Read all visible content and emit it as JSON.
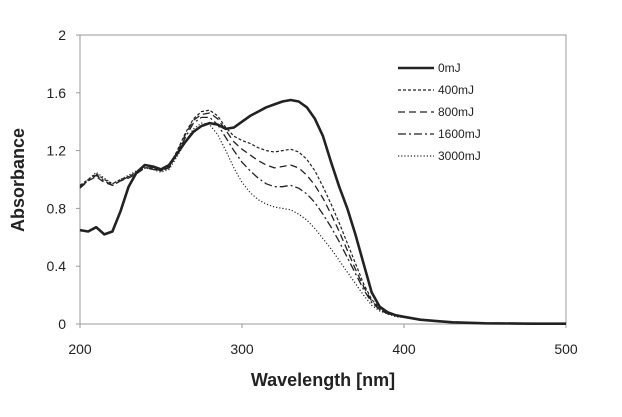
{
  "chart_data": {
    "type": "line",
    "title": "",
    "xlabel": "Wavelength [nm]",
    "ylabel": "Absorbance",
    "xlim": [
      200,
      500
    ],
    "ylim": [
      0,
      2
    ],
    "x_ticks": [
      "200",
      "300",
      "400",
      "500"
    ],
    "y_ticks": [
      "0",
      "0.4",
      "0.8",
      "1.2",
      "1.6",
      "2"
    ],
    "grid": false,
    "legend_position": "top-right",
    "series": [
      {
        "name": "0mJ",
        "style": "solid-bold",
        "x": [
          200,
          205,
          210,
          215,
          220,
          225,
          230,
          235,
          240,
          245,
          250,
          255,
          260,
          265,
          270,
          275,
          280,
          285,
          290,
          295,
          300,
          305,
          310,
          315,
          320,
          325,
          330,
          335,
          340,
          345,
          350,
          355,
          360,
          365,
          370,
          375,
          380,
          385,
          390,
          395,
          400,
          410,
          420,
          430,
          440,
          450,
          460,
          470,
          480,
          490,
          500
        ],
        "y": [
          0.65,
          0.64,
          0.67,
          0.62,
          0.64,
          0.78,
          0.95,
          1.05,
          1.1,
          1.09,
          1.07,
          1.1,
          1.18,
          1.26,
          1.33,
          1.37,
          1.39,
          1.38,
          1.35,
          1.36,
          1.4,
          1.44,
          1.47,
          1.5,
          1.52,
          1.54,
          1.55,
          1.54,
          1.5,
          1.42,
          1.3,
          1.12,
          0.95,
          0.8,
          0.62,
          0.42,
          0.22,
          0.12,
          0.08,
          0.06,
          0.05,
          0.03,
          0.02,
          0.012,
          0.008,
          0.005,
          0.004,
          0.003,
          0.002,
          0.002,
          0.002
        ]
      },
      {
        "name": "400mJ",
        "style": "short-dash",
        "x": [
          200,
          205,
          210,
          215,
          220,
          225,
          230,
          235,
          240,
          245,
          250,
          255,
          260,
          265,
          270,
          275,
          280,
          285,
          290,
          295,
          300,
          305,
          310,
          315,
          320,
          325,
          330,
          335,
          340,
          345,
          350,
          355,
          360,
          365,
          370,
          375,
          380,
          385,
          390,
          395,
          400,
          410,
          420,
          430,
          440,
          450,
          460,
          470,
          480,
          490,
          500
        ],
        "y": [
          0.96,
          1.0,
          1.04,
          1.0,
          0.97,
          1.0,
          1.02,
          1.05,
          1.08,
          1.08,
          1.06,
          1.09,
          1.2,
          1.32,
          1.42,
          1.47,
          1.48,
          1.44,
          1.36,
          1.3,
          1.27,
          1.25,
          1.22,
          1.2,
          1.19,
          1.2,
          1.21,
          1.19,
          1.14,
          1.06,
          0.95,
          0.83,
          0.7,
          0.56,
          0.42,
          0.28,
          0.17,
          0.11,
          0.08,
          0.06,
          0.05,
          0.03,
          0.02,
          0.012,
          0.008,
          0.005,
          0.004,
          0.003,
          0.002,
          0.002,
          0.002
        ]
      },
      {
        "name": "800mJ",
        "style": "dash",
        "x": [
          200,
          205,
          210,
          215,
          220,
          225,
          230,
          235,
          240,
          245,
          250,
          255,
          260,
          265,
          270,
          275,
          280,
          285,
          290,
          295,
          300,
          305,
          310,
          315,
          320,
          325,
          330,
          335,
          340,
          345,
          350,
          355,
          360,
          365,
          370,
          375,
          380,
          385,
          390,
          395,
          400,
          410,
          420,
          430,
          440,
          450,
          460,
          470,
          480,
          490,
          500
        ],
        "y": [
          0.94,
          0.99,
          1.02,
          0.98,
          0.96,
          0.99,
          1.01,
          1.04,
          1.08,
          1.08,
          1.06,
          1.09,
          1.19,
          1.31,
          1.41,
          1.45,
          1.46,
          1.42,
          1.34,
          1.26,
          1.21,
          1.17,
          1.13,
          1.1,
          1.08,
          1.09,
          1.1,
          1.08,
          1.03,
          0.96,
          0.87,
          0.76,
          0.64,
          0.51,
          0.38,
          0.26,
          0.16,
          0.1,
          0.07,
          0.06,
          0.05,
          0.03,
          0.02,
          0.012,
          0.008,
          0.005,
          0.004,
          0.003,
          0.002,
          0.002,
          0.002
        ]
      },
      {
        "name": "1600mJ",
        "style": "dash-dot",
        "x": [
          200,
          205,
          210,
          215,
          220,
          225,
          230,
          235,
          240,
          245,
          250,
          255,
          260,
          265,
          270,
          275,
          280,
          285,
          290,
          295,
          300,
          305,
          310,
          315,
          320,
          325,
          330,
          335,
          340,
          345,
          350,
          355,
          360,
          365,
          370,
          375,
          380,
          385,
          390,
          395,
          400,
          410,
          420,
          430,
          440,
          450,
          460,
          470,
          480,
          490,
          500
        ],
        "y": [
          0.95,
          0.99,
          1.03,
          0.99,
          0.96,
          0.99,
          1.02,
          1.05,
          1.08,
          1.07,
          1.06,
          1.08,
          1.18,
          1.29,
          1.39,
          1.43,
          1.43,
          1.38,
          1.29,
          1.2,
          1.12,
          1.06,
          1.01,
          0.97,
          0.95,
          0.95,
          0.96,
          0.94,
          0.9,
          0.84,
          0.76,
          0.67,
          0.57,
          0.46,
          0.35,
          0.24,
          0.15,
          0.1,
          0.07,
          0.06,
          0.05,
          0.03,
          0.02,
          0.012,
          0.008,
          0.005,
          0.004,
          0.003,
          0.002,
          0.002,
          0.002
        ]
      },
      {
        "name": "3000mJ",
        "style": "dotted",
        "x": [
          200,
          205,
          210,
          215,
          220,
          225,
          230,
          235,
          240,
          245,
          250,
          255,
          260,
          265,
          270,
          275,
          280,
          285,
          290,
          295,
          300,
          305,
          310,
          315,
          320,
          325,
          330,
          335,
          340,
          345,
          350,
          355,
          360,
          365,
          370,
          375,
          380,
          385,
          390,
          395,
          400,
          410,
          420,
          430,
          440,
          450,
          460,
          470,
          480,
          490,
          500
        ],
        "y": [
          0.95,
          1.0,
          1.05,
          1.01,
          0.97,
          1.0,
          1.03,
          1.06,
          1.08,
          1.07,
          1.05,
          1.07,
          1.16,
          1.26,
          1.35,
          1.39,
          1.38,
          1.31,
          1.2,
          1.08,
          0.98,
          0.91,
          0.86,
          0.83,
          0.81,
          0.8,
          0.79,
          0.76,
          0.72,
          0.66,
          0.59,
          0.52,
          0.44,
          0.36,
          0.28,
          0.2,
          0.13,
          0.09,
          0.07,
          0.05,
          0.045,
          0.03,
          0.02,
          0.012,
          0.008,
          0.005,
          0.004,
          0.003,
          0.002,
          0.002,
          0.002
        ]
      }
    ]
  }
}
